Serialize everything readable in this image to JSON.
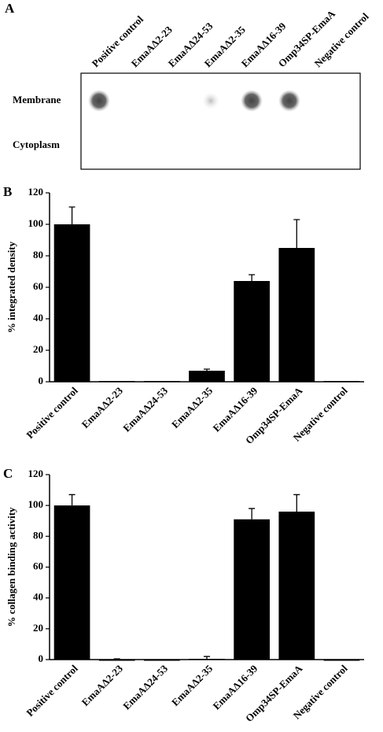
{
  "blot": {
    "panel_label": "A",
    "columns": [
      "Positive control",
      "EmaAΔ2-23",
      "EmaAΔ24-53",
      "EmaAΔ2-35",
      "EmaAΔ16-39",
      "Omp34SP-EmaA",
      "Negative control"
    ],
    "rows": [
      "Membrane",
      "Cytoplasm"
    ]
  },
  "chart_data": [
    {
      "type": "bar",
      "panel_label": "B",
      "ylabel": "% integrated density",
      "categories": [
        "Positive control",
        "EmaAΔ2-23",
        "EmaAΔ24-53",
        "EmaAΔ2-35",
        "EmaAΔ16-39",
        "Omp34SP-EmaA",
        "Negative control"
      ],
      "values": [
        100,
        0.5,
        0.5,
        7,
        64,
        85,
        0.5
      ],
      "errors": [
        11,
        0,
        0,
        1,
        4,
        18,
        0
      ],
      "ylim": [
        0,
        120
      ],
      "yticks": [
        0,
        20,
        40,
        60,
        80,
        100,
        120
      ],
      "color": "#000000"
    },
    {
      "type": "bar",
      "panel_label": "C",
      "ylabel": "% collagen binding activity",
      "categories": [
        "Positive control",
        "EmaAΔ2-23",
        "EmaAΔ24-53",
        "EmaAΔ2-35",
        "EmaAΔ16-39",
        "Omp34SP-EmaA",
        "Negative control"
      ],
      "values": [
        100,
        0,
        0,
        0.5,
        91,
        96,
        0
      ],
      "errors": [
        7,
        0.5,
        0,
        1.5,
        7,
        11,
        0
      ],
      "ylim": [
        0,
        120
      ],
      "yticks": [
        0,
        20,
        40,
        60,
        80,
        100,
        120
      ],
      "color": "#000000"
    }
  ]
}
